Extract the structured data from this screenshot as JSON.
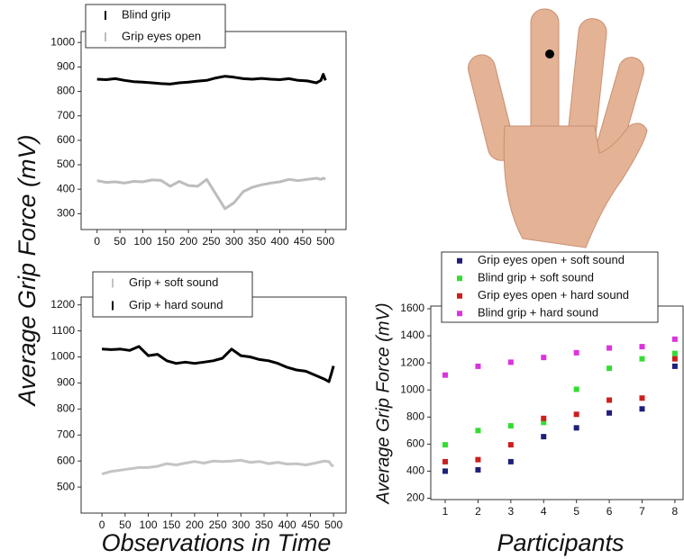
{
  "chart_data": [
    {
      "type": "line",
      "ylabel": "Average Grip Force (mV)",
      "x": [
        0,
        20,
        40,
        60,
        80,
        100,
        120,
        140,
        160,
        180,
        200,
        220,
        240,
        260,
        280,
        300,
        320,
        340,
        360,
        380,
        400,
        420,
        440,
        460,
        480,
        490,
        495,
        500
      ],
      "xlim": [
        -35,
        545
      ],
      "xticks": [
        0,
        50,
        100,
        150,
        200,
        250,
        300,
        350,
        400,
        450,
        500
      ],
      "ylim": [
        235,
        1045
      ],
      "yticks": [
        300,
        400,
        500,
        600,
        700,
        800,
        900,
        1000
      ],
      "series": [
        {
          "name": "Blind grip",
          "color": "#000000",
          "values": [
            850,
            848,
            852,
            845,
            840,
            838,
            835,
            832,
            830,
            835,
            838,
            842,
            845,
            855,
            862,
            858,
            852,
            850,
            853,
            850,
            848,
            852,
            845,
            843,
            835,
            845,
            870,
            845
          ]
        },
        {
          "name": "Grip eyes open",
          "color": "#bdbdbd",
          "values": [
            435,
            428,
            430,
            425,
            432,
            430,
            438,
            436,
            412,
            432,
            415,
            412,
            440,
            380,
            320,
            345,
            390,
            408,
            418,
            425,
            430,
            440,
            435,
            440,
            445,
            440,
            445,
            442
          ]
        }
      ]
    },
    {
      "type": "line",
      "xlabel": "Observations in Time",
      "x": [
        0,
        20,
        40,
        60,
        80,
        100,
        120,
        140,
        160,
        180,
        200,
        220,
        240,
        260,
        280,
        300,
        320,
        340,
        360,
        380,
        400,
        420,
        440,
        460,
        480,
        490,
        495,
        500
      ],
      "xlim": [
        -45,
        527
      ],
      "xticks": [
        0,
        50,
        100,
        150,
        200,
        250,
        300,
        350,
        400,
        450,
        500
      ],
      "ylim": [
        400,
        1230
      ],
      "yticks": [
        500,
        600,
        700,
        800,
        900,
        1000,
        1100,
        1200
      ],
      "series": [
        {
          "name": "Grip + soft sound",
          "color": "#c4c4c4",
          "values": [
            550,
            560,
            565,
            570,
            575,
            575,
            580,
            590,
            585,
            592,
            598,
            592,
            600,
            598,
            600,
            603,
            595,
            598,
            590,
            595,
            588,
            590,
            585,
            592,
            600,
            598,
            585,
            580
          ]
        },
        {
          "name": "Grip + hard sound",
          "color": "#000000",
          "values": [
            1030,
            1028,
            1030,
            1025,
            1040,
            1005,
            1010,
            985,
            975,
            980,
            975,
            980,
            985,
            995,
            1030,
            1005,
            1000,
            990,
            985,
            975,
            960,
            950,
            945,
            930,
            915,
            905,
            935,
            965
          ]
        }
      ]
    },
    {
      "type": "scatter",
      "xlabel": "Participants",
      "ylabel": "Average Grip Force (mV)",
      "x": [
        1,
        2,
        3,
        4,
        5,
        6,
        7,
        8
      ],
      "xlim": [
        0.56,
        8.25
      ],
      "xticks": [
        1,
        2,
        3,
        4,
        5,
        6,
        7,
        8
      ],
      "ylim": [
        190,
        1620
      ],
      "yticks": [
        200,
        400,
        600,
        800,
        1000,
        1200,
        1400,
        1600
      ],
      "series": [
        {
          "name": "Grip eyes open + soft sound",
          "color": "#1f1f7a",
          "values": [
            400,
            410,
            470,
            655,
            720,
            830,
            860,
            1175
          ]
        },
        {
          "name": "Blind grip + soft sound",
          "color": "#33dd33",
          "values": [
            595,
            700,
            735,
            760,
            1005,
            1160,
            1230,
            1270
          ]
        },
        {
          "name": "Grip eyes open + hard sound",
          "color": "#cc1f1f",
          "values": [
            470,
            485,
            595,
            790,
            820,
            925,
            940,
            1230
          ]
        },
        {
          "name": "Blind grip + hard sound",
          "color": "#dd33dd",
          "values": [
            1110,
            1175,
            1205,
            1240,
            1275,
            1310,
            1320,
            1375
          ]
        }
      ]
    }
  ]
}
